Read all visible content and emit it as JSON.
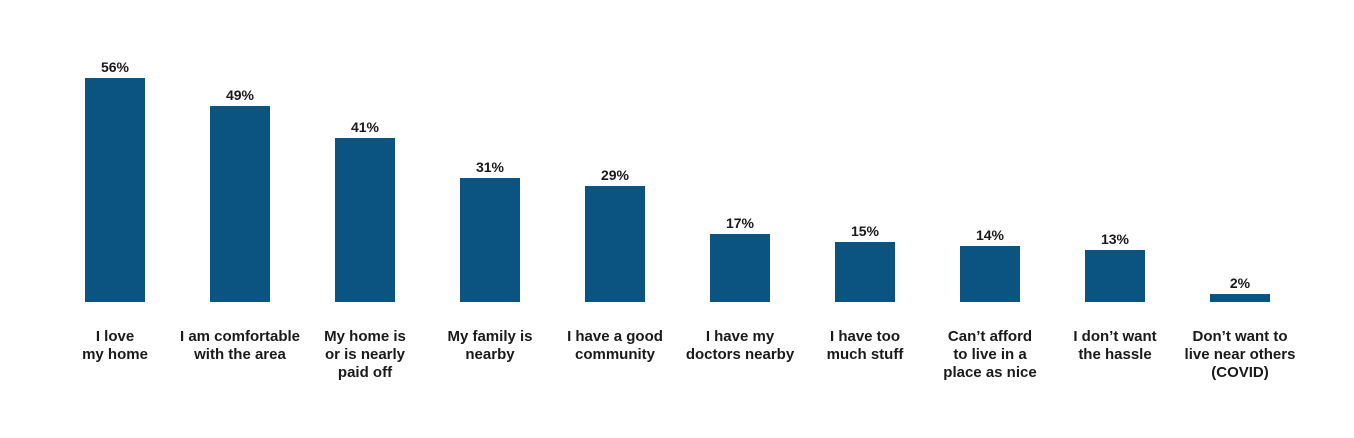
{
  "chart_data": {
    "type": "bar",
    "title": "",
    "xlabel": "",
    "ylabel": "",
    "ylim": [
      0,
      56
    ],
    "grid": false,
    "legend": "none",
    "bar_color": "#0b5381",
    "categories": [
      [
        "I love",
        "my home"
      ],
      [
        "I am comfortable",
        "with the area"
      ],
      [
        "My home is",
        "or is nearly",
        "paid off"
      ],
      [
        "My family is",
        "nearby"
      ],
      [
        "I have a good",
        "community"
      ],
      [
        "I have my",
        "doctors nearby"
      ],
      [
        "I have too",
        "much stuff"
      ],
      [
        "Can’t afford",
        "to live in a",
        "place as nice"
      ],
      [
        "I don’t want",
        "the hassle"
      ],
      [
        "Don’t want to",
        "live near others",
        "(COVID)"
      ]
    ],
    "values": [
      56,
      49,
      41,
      31,
      29,
      17,
      15,
      14,
      13,
      2
    ],
    "value_labels": [
      "56%",
      "49%",
      "41%",
      "31%",
      "29%",
      "17%",
      "15%",
      "14%",
      "13%",
      "2%"
    ]
  }
}
